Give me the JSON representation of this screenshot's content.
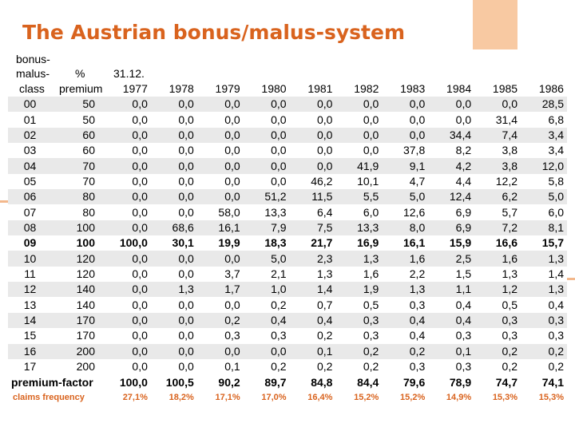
{
  "title": "The Austrian bonus/malus-system",
  "header": {
    "bonus1": "bonus-",
    "bonus2": "malus-",
    "bonus3": "class",
    "pct1": "%",
    "pct2": "premium",
    "date": "31.12.",
    "years": [
      "1977",
      "1978",
      "1979",
      "1980",
      "1981",
      "1982",
      "1983",
      "1984",
      "1985",
      "1986"
    ]
  },
  "rows": [
    {
      "cls": "00",
      "pct": "50",
      "v": [
        "0,0",
        "0,0",
        "0,0",
        "0,0",
        "0,0",
        "0,0",
        "0,0",
        "0,0",
        "0,0",
        "28,5"
      ]
    },
    {
      "cls": "01",
      "pct": "50",
      "v": [
        "0,0",
        "0,0",
        "0,0",
        "0,0",
        "0,0",
        "0,0",
        "0,0",
        "0,0",
        "31,4",
        "6,8"
      ]
    },
    {
      "cls": "02",
      "pct": "60",
      "v": [
        "0,0",
        "0,0",
        "0,0",
        "0,0",
        "0,0",
        "0,0",
        "0,0",
        "34,4",
        "7,4",
        "3,4"
      ]
    },
    {
      "cls": "03",
      "pct": "60",
      "v": [
        "0,0",
        "0,0",
        "0,0",
        "0,0",
        "0,0",
        "0,0",
        "37,8",
        "8,2",
        "3,8",
        "3,4"
      ]
    },
    {
      "cls": "04",
      "pct": "70",
      "v": [
        "0,0",
        "0,0",
        "0,0",
        "0,0",
        "0,0",
        "41,9",
        "9,1",
        "4,2",
        "3,8",
        "12,0"
      ]
    },
    {
      "cls": "05",
      "pct": "70",
      "v": [
        "0,0",
        "0,0",
        "0,0",
        "0,0",
        "46,2",
        "10,1",
        "4,7",
        "4,4",
        "12,2",
        "5,8"
      ]
    },
    {
      "cls": "06",
      "pct": "80",
      "v": [
        "0,0",
        "0,0",
        "0,0",
        "51,2",
        "11,5",
        "5,5",
        "5,0",
        "12,4",
        "6,2",
        "5,0"
      ]
    },
    {
      "cls": "07",
      "pct": "80",
      "v": [
        "0,0",
        "0,0",
        "58,0",
        "13,3",
        "6,4",
        "6,0",
        "12,6",
        "6,9",
        "5,7",
        "6,0"
      ]
    },
    {
      "cls": "08",
      "pct": "100",
      "v": [
        "0,0",
        "68,6",
        "16,1",
        "7,9",
        "7,5",
        "13,3",
        "8,0",
        "6,9",
        "7,2",
        "8,1"
      ]
    },
    {
      "cls": "09",
      "pct": "100",
      "bold": true,
      "v": [
        "100,0",
        "30,1",
        "19,9",
        "18,3",
        "21,7",
        "16,9",
        "16,1",
        "15,9",
        "16,6",
        "15,7"
      ]
    },
    {
      "cls": "10",
      "pct": "120",
      "v": [
        "0,0",
        "0,0",
        "0,0",
        "5,0",
        "2,3",
        "1,3",
        "1,6",
        "2,5",
        "1,6",
        "1,3"
      ]
    },
    {
      "cls": "11",
      "pct": "120",
      "v": [
        "0,0",
        "0,0",
        "3,7",
        "2,1",
        "1,3",
        "1,6",
        "2,2",
        "1,5",
        "1,3",
        "1,4"
      ]
    },
    {
      "cls": "12",
      "pct": "140",
      "v": [
        "0,0",
        "1,3",
        "1,7",
        "1,0",
        "1,4",
        "1,9",
        "1,3",
        "1,1",
        "1,2",
        "1,3"
      ]
    },
    {
      "cls": "13",
      "pct": "140",
      "v": [
        "0,0",
        "0,0",
        "0,0",
        "0,2",
        "0,7",
        "0,5",
        "0,3",
        "0,4",
        "0,5",
        "0,4"
      ]
    },
    {
      "cls": "14",
      "pct": "170",
      "v": [
        "0,0",
        "0,0",
        "0,2",
        "0,4",
        "0,4",
        "0,3",
        "0,4",
        "0,4",
        "0,3",
        "0,3"
      ]
    },
    {
      "cls": "15",
      "pct": "170",
      "v": [
        "0,0",
        "0,0",
        "0,3",
        "0,3",
        "0,2",
        "0,3",
        "0,4",
        "0,3",
        "0,3",
        "0,3"
      ]
    },
    {
      "cls": "16",
      "pct": "200",
      "v": [
        "0,0",
        "0,0",
        "0,0",
        "0,0",
        "0,1",
        "0,2",
        "0,2",
        "0,1",
        "0,2",
        "0,2"
      ]
    },
    {
      "cls": "17",
      "pct": "200",
      "v": [
        "0,0",
        "0,0",
        "0,1",
        "0,2",
        "0,2",
        "0,2",
        "0,3",
        "0,3",
        "0,2",
        "0,2"
      ]
    }
  ],
  "premium_factor": {
    "label": "premium-factor",
    "v": [
      "100,0",
      "100,5",
      "90,2",
      "89,7",
      "84,8",
      "84,4",
      "79,6",
      "78,9",
      "74,7",
      "74,1"
    ]
  },
  "claims_frequency": {
    "label": "claims frequency",
    "v": [
      "27,1%",
      "18,2%",
      "17,1%",
      "17,0%",
      "16,4%",
      "15,2%",
      "15,2%",
      "14,9%",
      "15,3%",
      "15,3%"
    ]
  },
  "colors": {
    "accent": "#d9631e",
    "accent_light": "#f8c9a2",
    "stripe": "#e9e9e9"
  }
}
